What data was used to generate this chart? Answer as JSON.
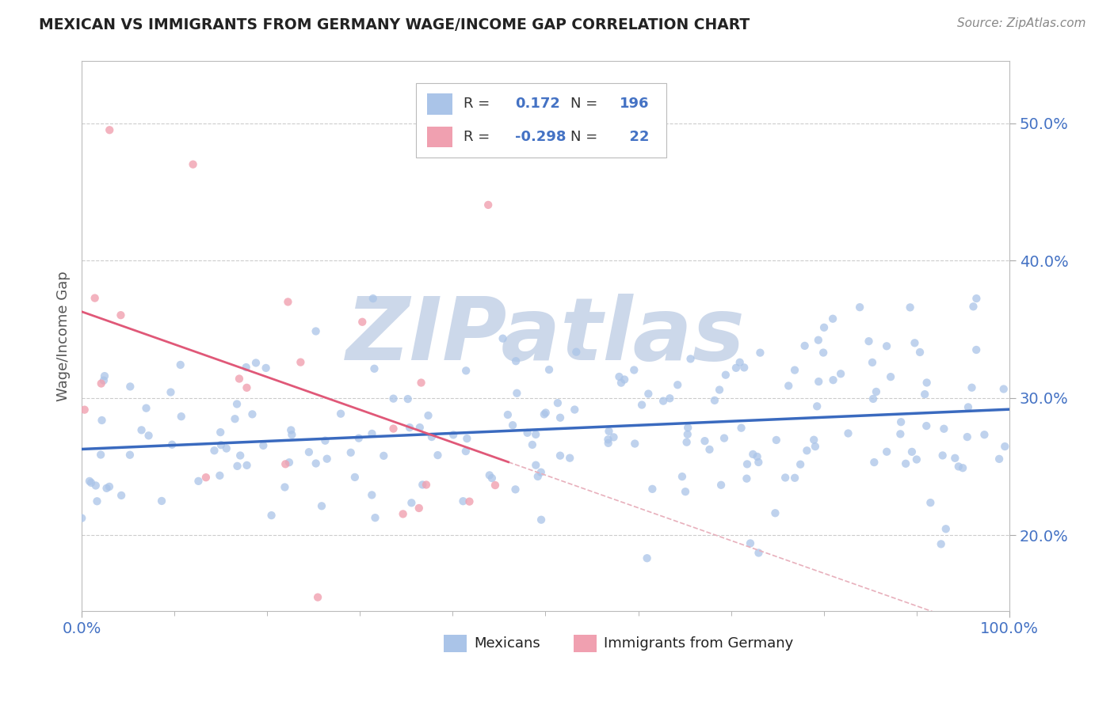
{
  "title": "MEXICAN VS IMMIGRANTS FROM GERMANY WAGE/INCOME GAP CORRELATION CHART",
  "source": "Source: ZipAtlas.com",
  "ylabel": "Wage/Income Gap",
  "r_mexican": 0.172,
  "n_mexican": 196,
  "r_german": -0.298,
  "n_german": 22,
  "xlim": [
    0.0,
    1.0
  ],
  "ylim": [
    0.145,
    0.545
  ],
  "yticks": [
    0.2,
    0.3,
    0.4,
    0.5
  ],
  "ytick_labels": [
    "20.0%",
    "30.0%",
    "40.0%",
    "50.0%"
  ],
  "xtick_labels": [
    "0.0%",
    "100.0%"
  ],
  "background_color": "#ffffff",
  "scatter_blue_color": "#aac4e8",
  "scatter_pink_color": "#f0a0b0",
  "line_blue_color": "#3a6abf",
  "line_pink_solid_color": "#e05878",
  "line_pink_dashed_color": "#e8b0bc",
  "grid_color": "#cccccc",
  "tick_color": "#4472c4",
  "watermark_color": "#ccd8ea",
  "watermark_text": "ZIPatlas",
  "title_color": "#222222",
  "source_color": "#888888"
}
